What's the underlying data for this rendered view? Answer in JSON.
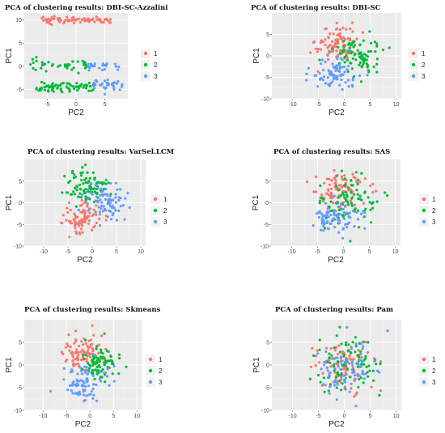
{
  "chart_data": [
    {
      "type": "scatter",
      "title": "PCA of clustering results: DBI-SC-Azzalini",
      "xlabel": "PC2",
      "ylabel": "PC1",
      "xlim": [
        -9,
        9
      ],
      "ylim": [
        -7,
        11.5
      ],
      "xticks": [
        -5,
        0,
        5
      ],
      "yticks": [
        -5,
        0,
        5,
        10
      ],
      "grid": true,
      "legend": "right",
      "series": [
        {
          "name": "1",
          "color": "#F8766D",
          "n": 70,
          "shape": "band",
          "cx": 0,
          "cy": 10,
          "sx": 3.6,
          "sy": 0.4,
          "xr": [
            -6,
            6
          ]
        },
        {
          "name": "2",
          "color": "#00BA38",
          "n": 110,
          "shape": "mixed",
          "parts": [
            {
              "cx": -2.5,
              "cy": 0.3,
              "sx": 2.6,
              "sy": 0.5,
              "xr": [
                -8,
                2
              ],
              "w": 0.35
            },
            {
              "cx": -1.5,
              "cy": -4.5,
              "sx": 2.5,
              "sy": 0.5,
              "xr": [
                -7,
                3
              ],
              "w": 0.65
            }
          ]
        },
        {
          "name": "3",
          "color": "#619CFF",
          "n": 60,
          "shape": "mixed",
          "parts": [
            {
              "cx": 4.5,
              "cy": 0.2,
              "sx": 1.6,
              "sy": 0.5,
              "xr": [
                2,
                7.5
              ],
              "w": 0.45
            },
            {
              "cx": 5,
              "cy": -4,
              "sx": 1.6,
              "sy": 0.6,
              "xr": [
                3,
                8
              ],
              "w": 0.55
            }
          ]
        }
      ]
    },
    {
      "type": "scatter",
      "title": "PCA of clustering results: DBI-SC",
      "xlabel": "PC2",
      "ylabel": "PC1",
      "xlim": [
        -14,
        11
      ],
      "ylim": [
        -10,
        10
      ],
      "xticks": [
        -10,
        -5,
        0,
        5,
        10
      ],
      "yticks": [
        -10,
        -5,
        0,
        5
      ],
      "grid": true,
      "legend": "right",
      "series": [
        {
          "name": "1",
          "color": "#F8766D",
          "n": 90,
          "cx": -1.5,
          "cy": 3,
          "sx": 2.0,
          "sy": 2.2
        },
        {
          "name": "2",
          "color": "#00BA38",
          "n": 90,
          "cx": 2.5,
          "cy": 0,
          "sx": 2.2,
          "sy": 2.3
        },
        {
          "name": "3",
          "color": "#619CFF",
          "n": 80,
          "cx": -2,
          "cy": -4,
          "sx": 2.4,
          "sy": 2.0
        }
      ]
    },
    {
      "type": "scatter",
      "title": "PCA of clustering results: VarSel.LCM",
      "xlabel": "PC2",
      "ylabel": "PC1",
      "xlim": [
        -14,
        11
      ],
      "ylim": [
        -10,
        10
      ],
      "xticks": [
        -10,
        -5,
        0,
        5,
        10
      ],
      "yticks": [
        -10,
        -5,
        0,
        5
      ],
      "grid": true,
      "legend": "right",
      "series": [
        {
          "name": "1",
          "color": "#F8766D",
          "n": 90,
          "cx": -2,
          "cy": -3.5,
          "sx": 2.2,
          "sy": 2.0
        },
        {
          "name": "2",
          "color": "#00BA38",
          "n": 90,
          "cx": -1,
          "cy": 3.5,
          "sx": 2.2,
          "sy": 2.0
        },
        {
          "name": "3",
          "color": "#619CFF",
          "n": 80,
          "cx": 3,
          "cy": 0,
          "sx": 2.2,
          "sy": 2.3
        }
      ]
    },
    {
      "type": "scatter",
      "title": "PCA of clustering results: SAS",
      "xlabel": "PC2",
      "ylabel": "PC1",
      "xlim": [
        -14,
        11
      ],
      "ylim": [
        -10,
        10
      ],
      "xticks": [
        -10,
        -5,
        0,
        5,
        10
      ],
      "yticks": [
        -10,
        -5,
        0,
        5
      ],
      "grid": true,
      "legend": "right",
      "series": [
        {
          "name": "1",
          "color": "#F8766D",
          "n": 90,
          "cx": -1,
          "cy": 2.5,
          "sx": 2.6,
          "sy": 2.4
        },
        {
          "name": "2",
          "color": "#00BA38",
          "n": 90,
          "cx": 1,
          "cy": 0.5,
          "sx": 2.8,
          "sy": 2.8
        },
        {
          "name": "3",
          "color": "#619CFF",
          "n": 80,
          "cx": -1.5,
          "cy": -3.5,
          "sx": 2.3,
          "sy": 2.0
        }
      ]
    },
    {
      "type": "scatter",
      "title": "PCA of clustering results: Skmeans",
      "xlabel": "PC2",
      "ylabel": "PC1",
      "xlim": [
        -14,
        11
      ],
      "ylim": [
        -10,
        10
      ],
      "xticks": [
        -10,
        -5,
        0,
        5,
        10
      ],
      "yticks": [
        -10,
        -5,
        0,
        5
      ],
      "grid": true,
      "legend": "right",
      "series": [
        {
          "name": "1",
          "color": "#F8766D",
          "n": 90,
          "cx": -1.5,
          "cy": 3,
          "sx": 2.0,
          "sy": 2.2
        },
        {
          "name": "2",
          "color": "#00BA38",
          "n": 90,
          "cx": 2,
          "cy": 0.5,
          "sx": 2.2,
          "sy": 2.0
        },
        {
          "name": "3",
          "color": "#619CFF",
          "n": 80,
          "cx": -1.5,
          "cy": -4,
          "sx": 2.4,
          "sy": 2.0
        }
      ]
    },
    {
      "type": "scatter",
      "title": "PCA of clustering results: Pam",
      "xlabel": "PC2",
      "ylabel": "PC1",
      "xlim": [
        -14,
        11
      ],
      "ylim": [
        -10,
        10
      ],
      "xticks": [
        -10,
        -5,
        0,
        5,
        10
      ],
      "yticks": [
        -10,
        -5,
        0,
        5
      ],
      "grid": true,
      "legend": "right",
      "series": [
        {
          "name": "1",
          "color": "#F8766D",
          "n": 90,
          "cx": -0.5,
          "cy": 0,
          "sx": 3.0,
          "sy": 3.0
        },
        {
          "name": "2",
          "color": "#00BA38",
          "n": 90,
          "cx": 0,
          "cy": 0,
          "sx": 3.0,
          "sy": 3.0
        },
        {
          "name": "3",
          "color": "#619CFF",
          "n": 80,
          "cx": 0.5,
          "cy": 0,
          "sx": 3.0,
          "sy": 3.0
        }
      ]
    }
  ]
}
